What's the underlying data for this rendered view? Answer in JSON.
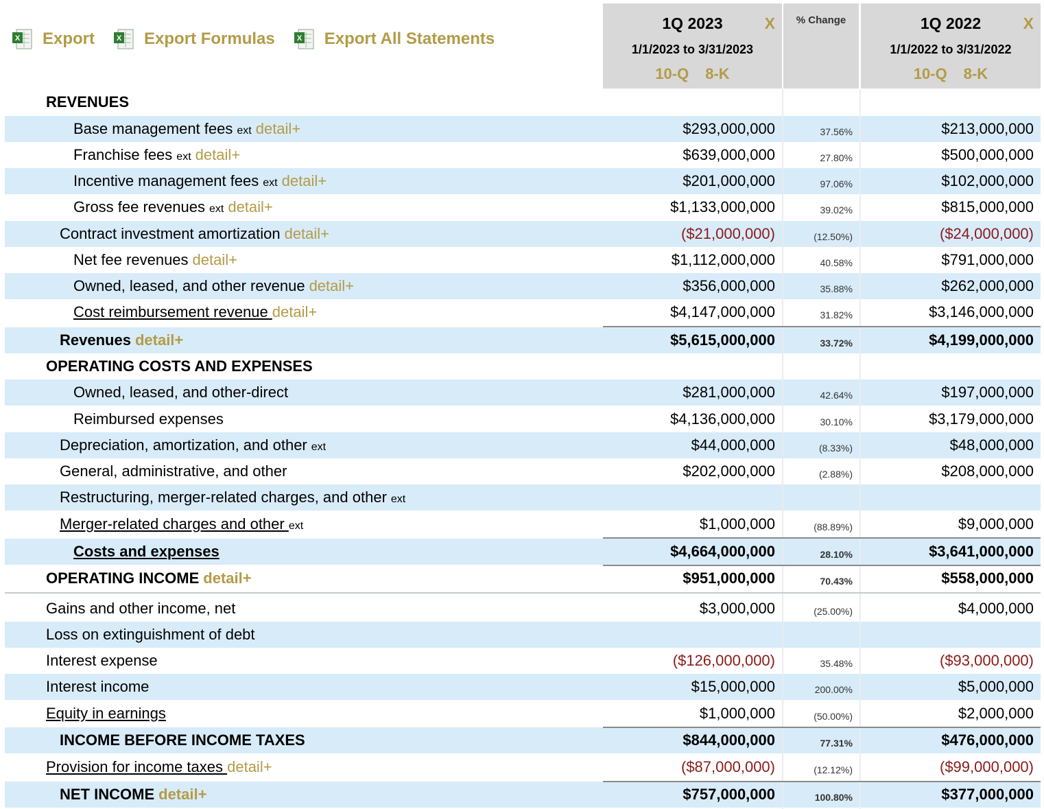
{
  "toolbar": {
    "export_label": "Export",
    "export_formulas_label": "Export Formulas",
    "export_all_label": "Export All Statements"
  },
  "columns": {
    "q2023": {
      "title": "1Q 2023",
      "close": "X",
      "range": "1/1/2023 to 3/31/2023",
      "link1": "10-Q",
      "link2": "8-K"
    },
    "pct": {
      "title": "% Change"
    },
    "q2022": {
      "title": "1Q 2022",
      "close": "X",
      "range": "1/1/2022 to 3/31/2022",
      "link1": "10-Q",
      "link2": "8-K"
    }
  },
  "rows": [
    {
      "label": "REVENUES",
      "ext": "",
      "detail": "",
      "v1": "",
      "pct": "",
      "v2": ""
    },
    {
      "label": "Base management fees",
      "ext": "ext",
      "detail": "detail+",
      "v1": "$293,000,000",
      "pct": "37.56%",
      "v2": "$213,000,000"
    },
    {
      "label": "Franchise fees",
      "ext": "ext",
      "detail": "detail+",
      "v1": "$639,000,000",
      "pct": "27.80%",
      "v2": "$500,000,000"
    },
    {
      "label": "Incentive management fees",
      "ext": "ext",
      "detail": "detail+",
      "v1": "$201,000,000",
      "pct": "97.06%",
      "v2": "$102,000,000"
    },
    {
      "label": "Gross fee revenues",
      "ext": "ext",
      "detail": "detail+",
      "v1": "$1,133,000,000",
      "pct": "39.02%",
      "v2": "$815,000,000"
    },
    {
      "label": "Contract investment amortization",
      "ext": "",
      "detail": "detail+",
      "v1": "($21,000,000)",
      "pct": "(12.50%)",
      "v2": "($24,000,000)"
    },
    {
      "label": "Net fee revenues",
      "ext": "",
      "detail": "detail+",
      "v1": "$1,112,000,000",
      "pct": "40.58%",
      "v2": "$791,000,000"
    },
    {
      "label": "Owned, leased, and other revenue",
      "ext": "",
      "detail": "detail+",
      "v1": "$356,000,000",
      "pct": "35.88%",
      "v2": "$262,000,000"
    },
    {
      "label": "Cost reimbursement revenue ",
      "ext": "",
      "detail": "detail+",
      "v1": "$4,147,000,000",
      "pct": "31.82%",
      "v2": "$3,146,000,000"
    },
    {
      "label": "Revenues",
      "ext": "",
      "detail": "detail+",
      "v1": "$5,615,000,000",
      "pct": "33.72%",
      "v2": "$4,199,000,000"
    },
    {
      "label": "OPERATING COSTS AND EXPENSES",
      "ext": "",
      "detail": "",
      "v1": "",
      "pct": "",
      "v2": ""
    },
    {
      "label": "Owned, leased, and other-direct",
      "ext": "",
      "detail": "",
      "v1": "$281,000,000",
      "pct": "42.64%",
      "v2": "$197,000,000"
    },
    {
      "label": "Reimbursed expenses",
      "ext": "",
      "detail": "",
      "v1": "$4,136,000,000",
      "pct": "30.10%",
      "v2": "$3,179,000,000"
    },
    {
      "label": "Depreciation, amortization, and other",
      "ext": "ext",
      "detail": "",
      "v1": "$44,000,000",
      "pct": "(8.33%)",
      "v2": "$48,000,000"
    },
    {
      "label": "General, administrative, and other",
      "ext": "",
      "detail": "",
      "v1": "$202,000,000",
      "pct": "(2.88%)",
      "v2": "$208,000,000"
    },
    {
      "label": "Restructuring, merger-related charges, and other",
      "ext": "ext",
      "detail": "",
      "v1": "",
      "pct": "",
      "v2": ""
    },
    {
      "label": "Merger-related charges and other ",
      "ext": "ext",
      "detail": "",
      "v1": "$1,000,000",
      "pct": "(88.89%)",
      "v2": "$9,000,000"
    },
    {
      "label": "Costs and expenses",
      "ext": "",
      "detail": "",
      "v1": "$4,664,000,000",
      "pct": "28.10%",
      "v2": "$3,641,000,000"
    },
    {
      "label": "OPERATING INCOME",
      "ext": "",
      "detail": "detail+",
      "v1": "$951,000,000",
      "pct": "70.43%",
      "v2": "$558,000,000"
    },
    {
      "label": "Gains and other income, net",
      "ext": "",
      "detail": "",
      "v1": "$3,000,000",
      "pct": "(25.00%)",
      "v2": "$4,000,000"
    },
    {
      "label": "Loss on extinguishment of debt",
      "ext": "",
      "detail": "",
      "v1": "",
      "pct": "",
      "v2": ""
    },
    {
      "label": "Interest expense",
      "ext": "",
      "detail": "",
      "v1": "($126,000,000)",
      "pct": "35.48%",
      "v2": "($93,000,000)"
    },
    {
      "label": "Interest income",
      "ext": "",
      "detail": "",
      "v1": "$15,000,000",
      "pct": "200.00%",
      "v2": "$5,000,000"
    },
    {
      "label": "Equity in earnings",
      "ext": "",
      "detail": "",
      "v1": "$1,000,000",
      "pct": "(50.00%)",
      "v2": "$2,000,000"
    },
    {
      "label": "INCOME BEFORE INCOME TAXES",
      "ext": "",
      "detail": "",
      "v1": "$844,000,000",
      "pct": "77.31%",
      "v2": "$476,000,000"
    },
    {
      "label": "Provision for income taxes ",
      "ext": "",
      "detail": "detail+",
      "v1": "($87,000,000)",
      "pct": "(12.12%)",
      "v2": "($99,000,000)"
    },
    {
      "label": "NET INCOME",
      "ext": "",
      "detail": "detail+",
      "v1": "$757,000,000",
      "pct": "100.80%",
      "v2": "$377,000,000"
    }
  ],
  "colors": {
    "accent": "#b39b47",
    "row_blue": "#d8ebf8",
    "header_gray": "#d8d8d8",
    "negative": "#8b1a1a"
  }
}
